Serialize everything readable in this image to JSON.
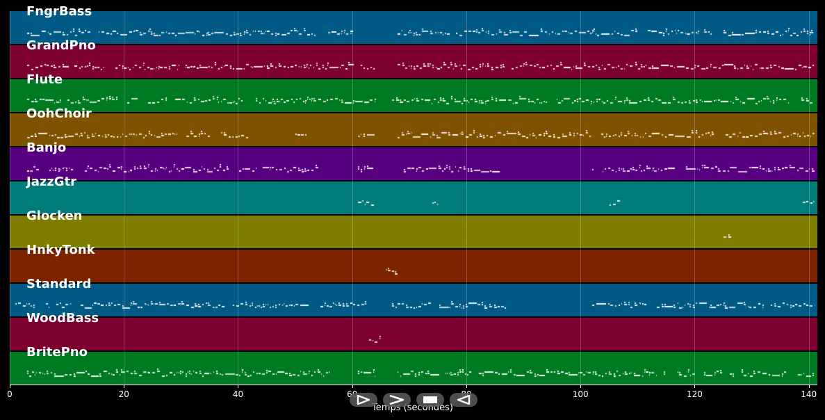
{
  "tracks": [
    {
      "label": "FngrBass",
      "color": "#005a85"
    },
    {
      "label": "GrandPno",
      "color": "#7d0030"
    },
    {
      "label": "Flute",
      "color": "#007a22"
    },
    {
      "label": "OohChoir",
      "color": "#7f5200"
    },
    {
      "label": "Banjo",
      "color": "#56007f"
    },
    {
      "label": "JazzGtr",
      "color": "#007d7a"
    },
    {
      "label": "Glocken",
      "color": "#7f7d00"
    },
    {
      "label": "HnkyTonk",
      "color": "#7c2400"
    },
    {
      "label": "Standard",
      "color": "#005a85"
    },
    {
      "label": "WoodBass",
      "color": "#7d0030"
    },
    {
      "label": "BritePno",
      "color": "#007a22"
    }
  ],
  "axis": {
    "xlabel": "Temps (secondes)",
    "ticks": [
      "0",
      "20",
      "40",
      "60",
      "80",
      "100",
      "120",
      "140"
    ],
    "range": [
      0,
      141.5
    ]
  },
  "controls": [
    {
      "name": "play-icon"
    },
    {
      "name": "fast-forward-icon"
    },
    {
      "name": "stop-icon"
    },
    {
      "name": "rewind-icon"
    }
  ],
  "activity": [
    [
      [
        3,
        60
      ],
      [
        68,
        141
      ]
    ],
    [
      [
        3,
        64
      ],
      [
        68,
        141
      ]
    ],
    [
      [
        3,
        64
      ],
      [
        67,
        141
      ]
    ],
    [
      [
        3,
        42
      ],
      [
        50,
        52
      ],
      [
        61,
        64
      ],
      [
        68,
        141
      ]
    ],
    [
      [
        3,
        54
      ],
      [
        61,
        64
      ],
      [
        69,
        86
      ],
      [
        102,
        141
      ]
    ],
    [
      [
        61,
        64
      ],
      [
        74,
        75
      ],
      [
        105,
        107
      ],
      [
        139,
        141
      ]
    ],
    [
      [
        125,
        126.5
      ]
    ],
    [
      [
        66,
        68
      ]
    ],
    [
      [
        1,
        64
      ],
      [
        67,
        87
      ],
      [
        102,
        141
      ]
    ],
    [
      [
        63,
        65
      ]
    ],
    [
      [
        3,
        56
      ],
      [
        61,
        64
      ],
      [
        68,
        141
      ]
    ]
  ]
}
